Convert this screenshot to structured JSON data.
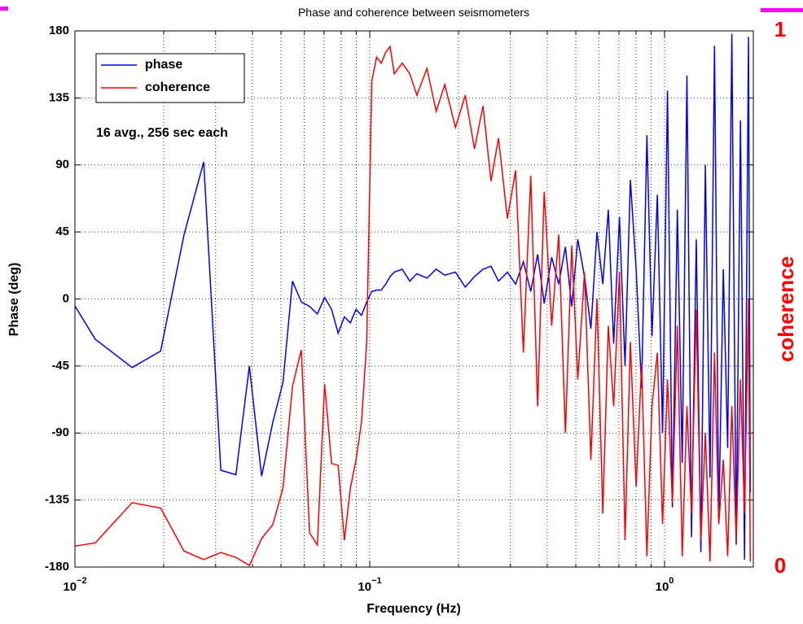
{
  "chart_data": {
    "type": "line",
    "title": "Phase and coherence between seismometers",
    "xlabel": "Frequency (Hz)",
    "ylabel": "Phase (deg)",
    "y2label": "coherence",
    "annotation": "16 avg., 256 sec each",
    "xscale": "log",
    "xlim": [
      0.01,
      2
    ],
    "xticks": [
      {
        "value": 0.01,
        "label": "10",
        "exponent": "−2"
      },
      {
        "value": 0.1,
        "label": "10",
        "exponent": "−1"
      },
      {
        "value": 1,
        "label": "10",
        "exponent": "0"
      }
    ],
    "ylim": [
      -180,
      180
    ],
    "yticks": [
      -180,
      -135,
      -90,
      -45,
      0,
      45,
      90,
      135,
      180
    ],
    "y2lim": [
      0,
      1
    ],
    "y2ticks": [
      0,
      1
    ],
    "grid": true,
    "minor_grid": true,
    "legend": "upper left",
    "x": [
      0.007813,
      0.01172,
      0.01563,
      0.01953,
      0.02344,
      0.02734,
      0.03125,
      0.03516,
      0.03906,
      0.04297,
      0.04688,
      0.05078,
      0.05469,
      0.05859,
      0.0625,
      0.06641,
      0.07031,
      0.07422,
      0.07813,
      0.08203,
      0.08594,
      0.08984,
      0.09375,
      0.09766,
      0.1016,
      0.1055,
      0.1094,
      0.1133,
      0.1172,
      0.1211,
      0.1289,
      0.1367,
      0.1445,
      0.1563,
      0.168,
      0.1797,
      0.1953,
      0.2109,
      0.2266,
      0.2422,
      0.2578,
      0.2734,
      0.293,
      0.3125,
      0.332,
      0.3516,
      0.3711,
      0.3906,
      0.4141,
      0.4375,
      0.4609,
      0.4844,
      0.5078,
      0.5352,
      0.5625,
      0.5898,
      0.6172,
      0.6445,
      0.6719,
      0.7031,
      0.7344,
      0.7656,
      0.8008,
      0.8359,
      0.8711,
      0.9063,
      0.9453,
      0.9844,
      1.023,
      1.063,
      1.105,
      1.148,
      1.191,
      1.234,
      1.281,
      1.328,
      1.375,
      1.426,
      1.477,
      1.527,
      1.582,
      1.637,
      1.691,
      1.75,
      1.809,
      1.867,
      1.926,
      1.953
    ],
    "series": [
      {
        "name": "phase",
        "color": "#0000ff",
        "values": [
          30,
          -27,
          -46,
          -35,
          43,
          92,
          -115,
          -118,
          -45,
          -119,
          -83,
          -56,
          12,
          -2,
          -5,
          -10,
          1,
          -7,
          -23,
          -12,
          -16,
          -7,
          -11,
          -2,
          5,
          6,
          6,
          10,
          15,
          18,
          20,
          12,
          17,
          14,
          20,
          16,
          18,
          8,
          15,
          20,
          22,
          12,
          18,
          10,
          25,
          5,
          30,
          -3,
          28,
          10,
          35,
          -5,
          40,
          15,
          -20,
          45,
          10,
          60,
          -30,
          55,
          -45,
          80,
          20,
          -60,
          110,
          -25,
          70,
          -90,
          140,
          -140,
          60,
          -110,
          150,
          -160,
          40,
          -170,
          90,
          -120,
          170,
          -150,
          20,
          -100,
          178,
          -165,
          120,
          -175,
          176,
          -130
        ]
      },
      {
        "name": "coherence",
        "color": "#ff0000",
        "axis": "y2",
        "values": [
          0.03,
          0.045,
          0.12,
          0.11,
          0.03,
          0.014,
          0.027,
          0.018,
          0.003,
          0.053,
          0.079,
          0.147,
          0.337,
          0.405,
          0.064,
          0.041,
          0.341,
          0.193,
          0.19,
          0.05,
          0.147,
          0.2,
          0.27,
          0.42,
          0.906,
          0.951,
          0.94,
          0.96,
          0.971,
          0.92,
          0.94,
          0.92,
          0.88,
          0.93,
          0.85,
          0.9,
          0.82,
          0.88,
          0.78,
          0.86,
          0.72,
          0.8,
          0.65,
          0.74,
          0.4,
          0.73,
          0.3,
          0.7,
          0.45,
          0.62,
          0.25,
          0.6,
          0.35,
          0.55,
          0.2,
          0.5,
          0.1,
          0.45,
          0.3,
          0.55,
          0.05,
          0.42,
          0.15,
          0.38,
          0.02,
          0.3,
          0.4,
          0.08,
          0.35,
          0.12,
          0.45,
          0.02,
          0.3,
          0.1,
          0.48,
          0.05,
          0.25,
          0.01,
          0.4,
          0.08,
          0.2,
          0.02,
          0.3,
          0.05,
          0.35,
          0.1,
          0.5,
          0.01
        ]
      }
    ]
  }
}
